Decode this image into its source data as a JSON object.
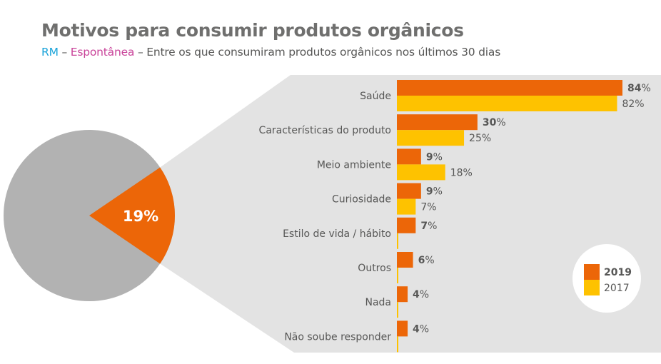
{
  "header": {
    "title": "Motivos para consumir produtos orgânicos",
    "subtitle_region": "RM",
    "subtitle_sep1": " – ",
    "subtitle_type": "Espontânea",
    "subtitle_sep2": " – ",
    "subtitle_rest": "Entre os que consumiram produtos orgânicos nos últimos 30 dias"
  },
  "colors": {
    "series_2019": "#ec6608",
    "series_2017": "#fec200",
    "pie_rest": "#b2b2b2",
    "panel": "#e3e3e3",
    "region": "#1aa3d9",
    "type": "#c9449a"
  },
  "chart_data": [
    {
      "type": "pie",
      "title": "",
      "slices": [
        {
          "label": "19%",
          "value": 19,
          "highlighted": true
        },
        {
          "label": "",
          "value": 81,
          "highlighted": false
        }
      ]
    },
    {
      "type": "bar",
      "orientation": "horizontal",
      "title": "Motivos para consumir produtos orgânicos",
      "categories": [
        "Saúde",
        "Características do produto",
        "Meio ambiente",
        "Curiosidade",
        "Estilo de vida / hábito",
        "Outros",
        "Nada",
        "Não soube responder"
      ],
      "series": [
        {
          "name": "2019",
          "values": [
            84,
            30,
            9,
            9,
            7,
            6,
            4,
            4
          ],
          "labels": [
            "84%",
            "30%",
            "9%",
            "9%",
            "7%",
            "6%",
            "4%",
            "4%"
          ]
        },
        {
          "name": "2017",
          "values": [
            82,
            25,
            18,
            7,
            0,
            0,
            0,
            0
          ],
          "labels": [
            "82%",
            "25%",
            "18%",
            "7%",
            "",
            "",
            "",
            ""
          ]
        }
      ],
      "xlim": [
        0,
        84
      ],
      "grid": false,
      "legend": {
        "placement": "bottom-right",
        "entries": [
          "2019",
          "2017"
        ]
      }
    }
  ]
}
